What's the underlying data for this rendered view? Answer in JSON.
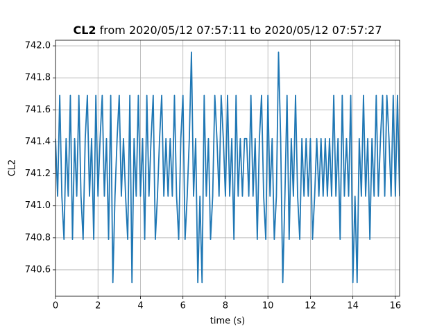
{
  "chart_data": {
    "type": "line",
    "title_bold": "CL2",
    "title": "from 2020/05/12 07:57:11 to 2020/05/12 07:57:27",
    "x_label": "time (s)",
    "y_label": "CL2",
    "x": [
      0,
      0.1,
      0.2,
      0.3,
      0.4,
      0.5,
      0.6,
      0.7,
      0.8,
      0.9,
      1,
      1.1,
      1.2,
      1.3,
      1.4,
      1.5,
      1.6,
      1.7,
      1.8,
      1.9,
      2,
      2.1,
      2.2,
      2.3,
      2.4,
      2.5,
      2.6,
      2.7,
      2.8,
      2.9,
      3,
      3.1,
      3.2,
      3.3,
      3.4,
      3.5,
      3.6,
      3.7,
      3.8,
      3.9,
      4,
      4.1,
      4.2,
      4.3,
      4.4,
      4.5,
      4.6,
      4.7,
      4.8,
      4.9,
      5,
      5.1,
      5.2,
      5.3,
      5.4,
      5.5,
      5.6,
      5.7,
      5.8,
      5.9,
      6,
      6.1,
      6.2,
      6.3,
      6.4,
      6.5,
      6.6,
      6.7,
      6.8,
      6.9,
      7,
      7.1,
      7.2,
      7.3,
      7.4,
      7.5,
      7.6,
      7.7,
      7.8,
      7.9,
      8,
      8.1,
      8.2,
      8.3,
      8.4,
      8.5,
      8.6,
      8.7,
      8.8,
      8.9,
      9,
      9.1,
      9.2,
      9.3,
      9.4,
      9.5,
      9.6,
      9.7,
      9.8,
      9.9,
      10,
      10.1,
      10.2,
      10.3,
      10.4,
      10.5,
      10.6,
      10.7,
      10.8,
      10.9,
      11,
      11.1,
      11.2,
      11.3,
      11.4,
      11.5,
      11.6,
      11.7,
      11.8,
      11.9,
      12,
      12.1,
      12.2,
      12.3,
      12.4,
      12.5,
      12.6,
      12.7,
      12.8,
      12.9,
      13,
      13.1,
      13.2,
      13.3,
      13.4,
      13.5,
      13.6,
      13.7,
      13.8,
      13.9,
      14,
      14.1,
      14.2,
      14.3,
      14.4,
      14.5,
      14.6,
      14.7,
      14.8,
      14.9,
      15,
      15.1,
      15.2,
      15.3,
      15.4,
      15.5,
      15.6,
      15.7,
      15.8,
      15.9,
      16,
      16.1,
      16.2
    ],
    "series": [
      {
        "name": "CL2",
        "color": "#1f77b4",
        "values": [
          741.42,
          741.06,
          741.69,
          741.06,
          740.79,
          741.42,
          741.06,
          741.69,
          740.79,
          741.42,
          741.06,
          741.69,
          741.06,
          740.79,
          741.42,
          741.69,
          741.06,
          741.42,
          740.79,
          741.69,
          741.06,
          741.42,
          741.69,
          741.06,
          741.42,
          740.79,
          741.69,
          740.52,
          741.06,
          741.42,
          741.69,
          741.06,
          741.42,
          741.06,
          740.79,
          741.69,
          740.52,
          741.42,
          741.06,
          741.69,
          741.06,
          741.42,
          740.79,
          741.69,
          741.06,
          741.42,
          741.69,
          740.79,
          741.06,
          741.42,
          741.69,
          741.06,
          741.42,
          741.06,
          741.42,
          741.06,
          741.69,
          741.06,
          740.79,
          741.42,
          741.69,
          740.79,
          741.06,
          741.42,
          741.96,
          741.06,
          741.42,
          740.52,
          741.06,
          740.52,
          741.69,
          741.06,
          741.42,
          740.79,
          741.06,
          741.69,
          741.42,
          741.06,
          741.69,
          741.42,
          741.06,
          741.69,
          741.06,
          741.42,
          740.79,
          741.69,
          741.06,
          741.42,
          741.06,
          741.42,
          741.42,
          741.06,
          741.69,
          741.06,
          741.42,
          740.79,
          741.42,
          741.69,
          741.06,
          740.79,
          741.69,
          741.06,
          741.42,
          740.79,
          741.06,
          741.96,
          741.42,
          740.52,
          741.06,
          741.69,
          740.79,
          741.42,
          741.06,
          741.69,
          741.06,
          740.79,
          741.42,
          741.06,
          741.42,
          741.06,
          741.42,
          740.79,
          741.06,
          741.42,
          741.06,
          741.42,
          741.06,
          741.42,
          741.06,
          741.42,
          741.06,
          741.69,
          741.06,
          741.42,
          740.79,
          741.69,
          741.06,
          741.42,
          741.06,
          741.69,
          740.52,
          741.06,
          740.52,
          741.42,
          741.06,
          741.69,
          741.06,
          741.42,
          740.79,
          741.42,
          741.06,
          741.69,
          741.06,
          741.42,
          741.69,
          741.06,
          741.69,
          741.42,
          741.06,
          741.69,
          741.06,
          741.69,
          741.06
        ]
      }
    ],
    "xlim": [
      0,
      16.2
    ],
    "ylim": [
      740.435,
      742.035
    ],
    "xticks": [
      0,
      2,
      4,
      6,
      8,
      10,
      12,
      14,
      16
    ],
    "yticks": [
      740.6,
      740.8,
      {
        "value": 741,
        "label": "741.0"
      },
      741.2,
      741.4,
      741.6,
      741.8,
      {
        "value": 742,
        "label": "742.0"
      }
    ],
    "grid": true
  }
}
